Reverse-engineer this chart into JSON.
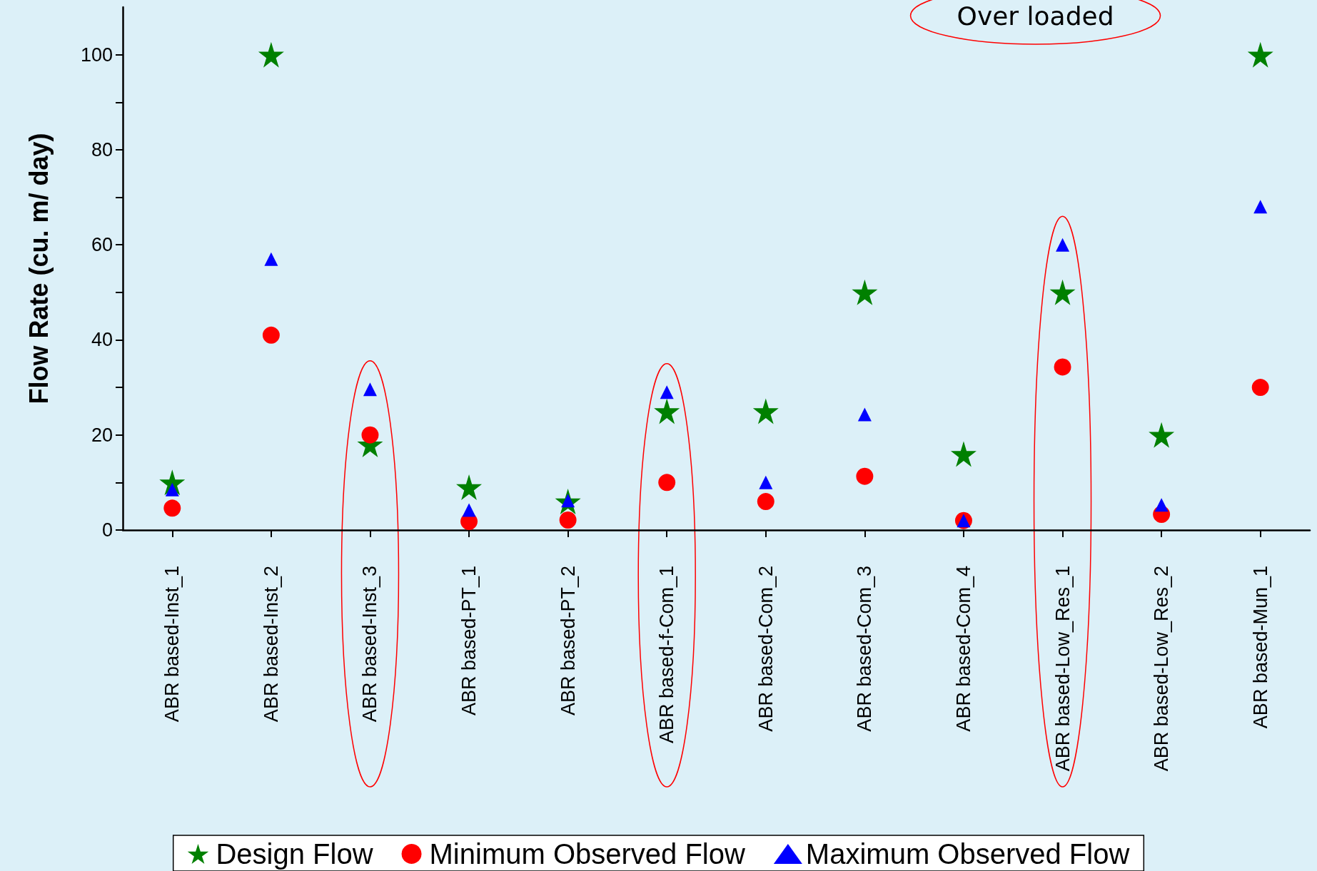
{
  "chart_data": {
    "type": "scatter",
    "ylabel": "Flow Rate (cu. m/ day)",
    "categories": [
      "ABR based-Inst_1",
      "ABR based-Inst_2",
      "ABR based-Inst_3",
      "ABR based-PT_1",
      "ABR based-PT_2",
      "ABR based-f-Com_1",
      "ABR based-Com_2",
      "ABR based-Com_3",
      "ABR based-Com_4",
      "ABR based-Low_Res_1",
      "ABR based-Low_Res_2",
      "ABR based-Mun_1"
    ],
    "series": [
      {
        "name": "Design Flow",
        "color": "#008000",
        "marker": "star",
        "values": [
          10,
          100,
          18,
          9,
          6,
          25,
          25,
          50,
          16,
          50,
          20,
          100
        ]
      },
      {
        "name": "Minimum Observed Flow",
        "color": "#ff0000",
        "marker": "circle",
        "values": [
          4.6,
          41,
          20,
          1.8,
          2.1,
          10,
          6,
          11.3,
          2,
          34.3,
          3.3,
          30
        ]
      },
      {
        "name": "Maximum Observed Flow",
        "color": "#0000ff",
        "marker": "triangle",
        "values": [
          8.5,
          57,
          29.6,
          4.2,
          6.2,
          29,
          10,
          24.3,
          2,
          60,
          5.3,
          68
        ]
      }
    ],
    "ylim": [
      0,
      110
    ],
    "yticks": [
      0,
      {
        "value": 10,
        "label": null
      },
      20,
      {
        "value": 30,
        "label": null
      },
      40,
      {
        "value": 50,
        "label": null
      },
      60,
      {
        "value": 70,
        "label": null
      },
      80,
      {
        "value": 90,
        "label": null
      },
      100
    ],
    "grid": false,
    "legend": "bottom",
    "annotations": [
      "Over loaded"
    ]
  }
}
